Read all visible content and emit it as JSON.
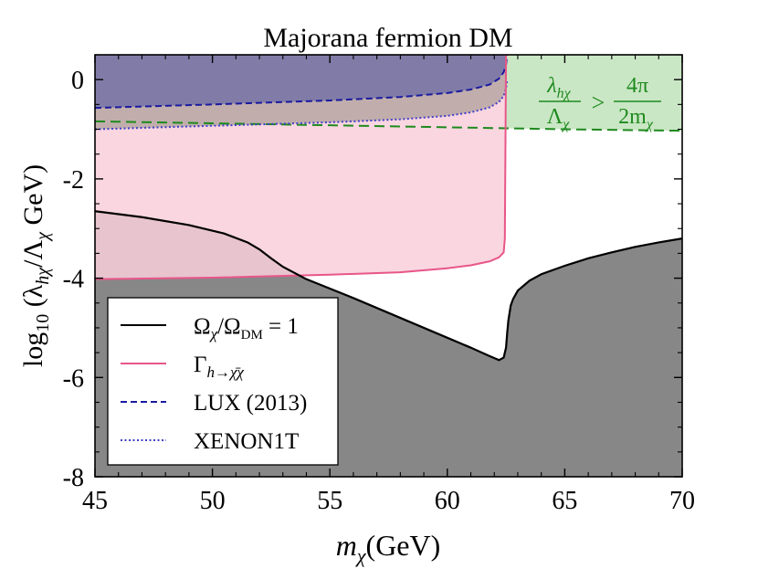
{
  "chart_data": {
    "type": "area",
    "title": "Majorana fermion DM",
    "xlabel": {
      "main": "m",
      "sub": "χ",
      "rest": "(GeV)"
    },
    "ylabel": {
      "pre": "log",
      "pre_sub": "10",
      "mid": " (λ",
      "mid_sub": "hχ",
      "slash": "/Λ",
      "slash_sub": "χ",
      "rest": " GeV)"
    },
    "xlim": [
      45,
      70
    ],
    "ylim": [
      -8,
      0.5
    ],
    "xticks": [
      45,
      50,
      55,
      60,
      65,
      70
    ],
    "yticks": [
      -8,
      -6,
      -4,
      -2,
      0
    ],
    "ytick_labels": [
      "-8",
      "-6",
      "-4",
      "-2",
      "0"
    ],
    "colors": {
      "relic_fill": "#878787",
      "relic_line": "#000000",
      "invisible_fill": "#f8cfdb",
      "invisible_line": "#e8568a",
      "lux_fill": "#7a77a6",
      "lux_line": "#1a1aa0",
      "xenon_fill": "#b7a7a2",
      "xenon_line": "#4040c8",
      "perturb_fill": "#c7e6c2",
      "perturb_line": "#1e8a1e",
      "annotation": "#1e8a1e"
    },
    "series": [
      {
        "name": "relic",
        "x": [
          45,
          47,
          49,
          50.5,
          51.5,
          52,
          52.5,
          53,
          54,
          56,
          58,
          60,
          61,
          61.8,
          62.2,
          62.4,
          62.5,
          62.55,
          62.6,
          62.7,
          62.8,
          63,
          63.5,
          64,
          65,
          66,
          67,
          68,
          69,
          70
        ],
        "values": [
          -2.65,
          -2.77,
          -2.93,
          -3.1,
          -3.28,
          -3.42,
          -3.6,
          -3.77,
          -4.02,
          -4.4,
          -4.8,
          -5.2,
          -5.4,
          -5.57,
          -5.65,
          -5.6,
          -5.4,
          -5.1,
          -4.85,
          -4.55,
          -4.42,
          -4.25,
          -4.05,
          -3.92,
          -3.75,
          -3.6,
          -3.48,
          -3.37,
          -3.28,
          -3.2
        ]
      },
      {
        "name": "invisible_width",
        "x": [
          45,
          50,
          55,
          58,
          60,
          61,
          61.8,
          62.2,
          62.4,
          62.45,
          62.5
        ],
        "values": [
          -4.02,
          -3.99,
          -3.93,
          -3.88,
          -3.8,
          -3.74,
          -3.66,
          -3.58,
          -3.48,
          -3.2,
          0.5
        ]
      },
      {
        "name": "lux_2013",
        "x": [
          45,
          50,
          55,
          58,
          60,
          61,
          61.8,
          62.2,
          62.4,
          62.5,
          62.55
        ],
        "values": [
          -0.57,
          -0.5,
          -0.42,
          -0.35,
          -0.27,
          -0.2,
          -0.1,
          0.02,
          0.15,
          0.3,
          0.5
        ]
      },
      {
        "name": "xenon1t",
        "x": [
          45,
          50,
          55,
          58,
          60,
          61,
          61.8,
          62.2,
          62.4,
          62.5,
          62.55
        ],
        "values": [
          -1.0,
          -0.93,
          -0.86,
          -0.8,
          -0.73,
          -0.66,
          -0.56,
          -0.45,
          -0.33,
          -0.18,
          0.0
        ]
      },
      {
        "name": "perturbativity",
        "x": [
          45,
          50,
          55,
          60,
          62.5,
          65,
          70
        ],
        "values": [
          -0.84,
          -0.88,
          -0.92,
          -0.96,
          -0.98,
          -1.0,
          -1.03
        ]
      }
    ],
    "legend": {
      "position": "lower-left",
      "entries": [
        {
          "label_main": "Ω",
          "label_sub": "χ",
          "label_mid": "/Ω",
          "label_sub2": "DM",
          "label_tail": " = 1",
          "style": "solid",
          "color_key": "relic_line"
        },
        {
          "label_main": "Γ",
          "label_sub": "h→χ̄χ",
          "label_mid": "",
          "label_sub2": "",
          "label_tail": "",
          "style": "solid",
          "color_key": "invisible_line"
        },
        {
          "label_main": "LUX (2013)",
          "label_sub": "",
          "label_mid": "",
          "label_sub2": "",
          "label_tail": "",
          "style": "dashed",
          "color_key": "lux_line"
        },
        {
          "label_main": "XENON1T",
          "label_sub": "",
          "label_mid": "",
          "label_sub2": "",
          "label_tail": "",
          "style": "dotted",
          "color_key": "xenon_line"
        }
      ]
    },
    "annotation": {
      "lhs_num": "λ",
      "lhs_num_sub": "hχ",
      "lhs_den": "Λ",
      "lhs_den_sub": "χ",
      "op": ">",
      "rhs_num": "4π",
      "rhs_den": "2m",
      "rhs_den_sub": "χ"
    }
  }
}
